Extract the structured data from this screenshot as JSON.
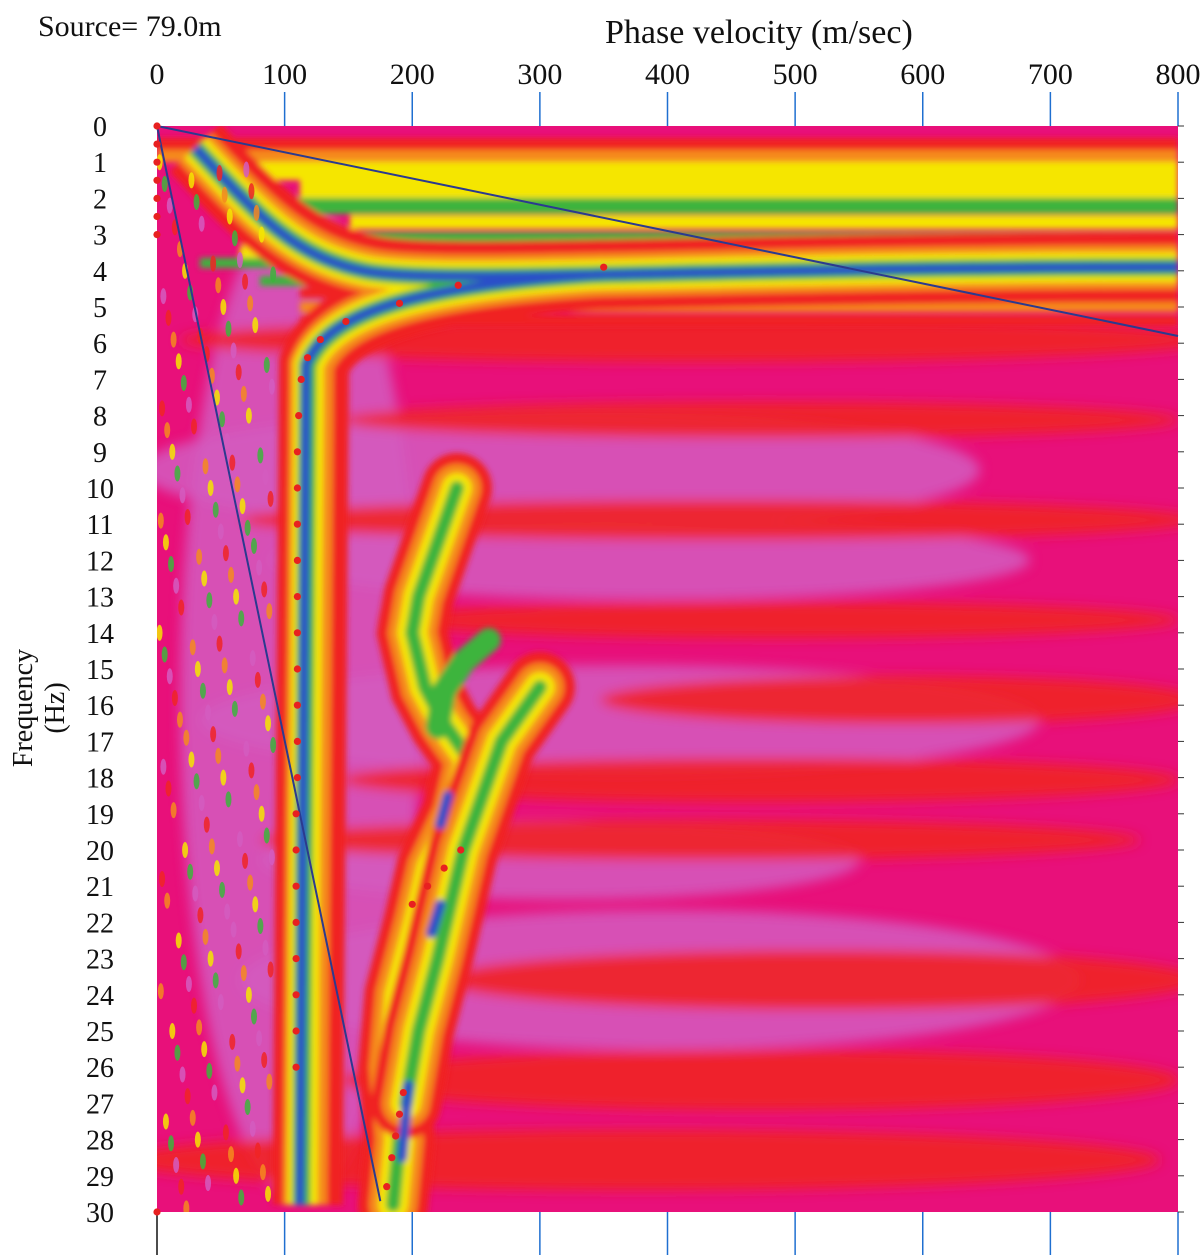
{
  "source_label": "Source= 79.0m",
  "chart_data": {
    "type": "heatmap",
    "title": "",
    "xlabel": "Phase velocity (m/sec)",
    "ylabel": "Frequency (Hz)",
    "xlim": [
      0,
      800
    ],
    "ylim": [
      0,
      30
    ],
    "x_ticks": [
      "0",
      "100",
      "200",
      "300",
      "400",
      "500",
      "600",
      "700",
      "800"
    ],
    "y_ticks": [
      "0",
      "1",
      "2",
      "3",
      "4",
      "5",
      "6",
      "7",
      "8",
      "9",
      "10",
      "11",
      "12",
      "13",
      "14",
      "15",
      "16",
      "17",
      "18",
      "19",
      "20",
      "21",
      "22",
      "23",
      "24",
      "25",
      "26",
      "27",
      "28",
      "29",
      "30"
    ],
    "grid": "vertical",
    "colors": {
      "background": "#e8107a",
      "magenta_low": "#d45cc0",
      "red": "#f02424",
      "orange": "#f58a1e",
      "yellow": "#f5e600",
      "green": "#3cb43c",
      "blue": "#2b4fc8",
      "picks": "#e82020",
      "line": "#2b3a8f",
      "grid": "#1f6fd0"
    },
    "dispersion_picks": [
      {
        "x": 0,
        "y": 0
      },
      {
        "x": 0,
        "y": 0.5
      },
      {
        "x": 0,
        "y": 1
      },
      {
        "x": 0,
        "y": 1.5
      },
      {
        "x": 0,
        "y": 2
      },
      {
        "x": 0,
        "y": 2.5
      },
      {
        "x": 0,
        "y": 3
      },
      {
        "x": 350,
        "y": 3.9
      },
      {
        "x": 236,
        "y": 4.4
      },
      {
        "x": 190,
        "y": 4.9
      },
      {
        "x": 148,
        "y": 5.4
      },
      {
        "x": 128,
        "y": 5.9
      },
      {
        "x": 118,
        "y": 6.4
      },
      {
        "x": 113,
        "y": 7
      },
      {
        "x": 111,
        "y": 8
      },
      {
        "x": 110,
        "y": 9
      },
      {
        "x": 110,
        "y": 10
      },
      {
        "x": 110,
        "y": 11
      },
      {
        "x": 110,
        "y": 12
      },
      {
        "x": 110,
        "y": 13
      },
      {
        "x": 110,
        "y": 14
      },
      {
        "x": 110,
        "y": 15
      },
      {
        "x": 110,
        "y": 16
      },
      {
        "x": 110,
        "y": 17
      },
      {
        "x": 110,
        "y": 18
      },
      {
        "x": 109,
        "y": 19
      },
      {
        "x": 109,
        "y": 20
      },
      {
        "x": 109,
        "y": 21
      },
      {
        "x": 109,
        "y": 22
      },
      {
        "x": 109,
        "y": 23
      },
      {
        "x": 109,
        "y": 24
      },
      {
        "x": 109,
        "y": 25
      },
      {
        "x": 109,
        "y": 26
      },
      {
        "x": 0,
        "y": 30
      }
    ],
    "higher_mode_picks": [
      {
        "x": 238,
        "y": 20
      },
      {
        "x": 225,
        "y": 20.5
      },
      {
        "x": 212,
        "y": 21
      },
      {
        "x": 200,
        "y": 21.5
      },
      {
        "x": 193,
        "y": 26.7
      },
      {
        "x": 190,
        "y": 27.3
      },
      {
        "x": 187,
        "y": 27.9
      },
      {
        "x": 184,
        "y": 28.5
      },
      {
        "x": 180,
        "y": 29.3
      }
    ],
    "reference_lines": [
      {
        "from": [
          0,
          0
        ],
        "to": [
          800,
          5.8
        ]
      },
      {
        "from": [
          0,
          0
        ],
        "to": [
          175,
          29.7
        ]
      }
    ]
  }
}
